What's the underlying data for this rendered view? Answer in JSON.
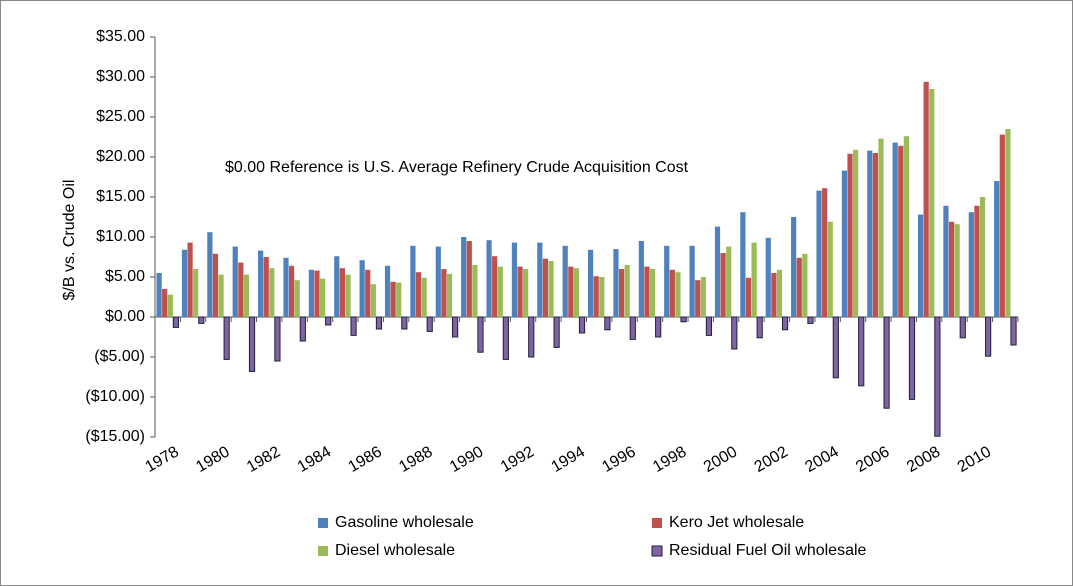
{
  "chart_data": {
    "type": "bar",
    "y_axis_label": "$/B vs. Crude Oil",
    "annotation": "$0.00 Reference is U.S. Average Refinery Crude Acquisition Cost",
    "categories": [
      "1978",
      null,
      "1980",
      null,
      "1982",
      null,
      "1984",
      null,
      "1986",
      null,
      "1988",
      null,
      "1990",
      null,
      "1992",
      null,
      "1994",
      null,
      "1996",
      null,
      "1998",
      null,
      "2000",
      null,
      "2002",
      null,
      "2004",
      null,
      "2006",
      null,
      "2008",
      null,
      "2010",
      null
    ],
    "series": [
      {
        "name": "Gasoline wholesale",
        "color": "#4f81bd",
        "values": [
          5.5,
          8.4,
          10.6,
          8.8,
          8.3,
          7.4,
          5.9,
          7.6,
          7.1,
          6.4,
          8.9,
          8.8,
          10.0,
          9.6,
          9.3,
          9.3,
          8.9,
          8.4,
          8.5,
          9.5,
          8.9,
          8.9,
          11.3,
          13.1,
          9.9,
          12.5,
          15.8,
          18.3,
          20.8,
          21.8,
          12.8,
          13.9,
          13.1,
          17.0
        ]
      },
      {
        "name": "Kero Jet wholesale",
        "color": "#c0504d",
        "values": [
          3.5,
          9.3,
          7.9,
          6.8,
          7.5,
          6.4,
          5.8,
          6.1,
          5.9,
          4.4,
          5.6,
          6.0,
          9.5,
          7.6,
          6.3,
          7.3,
          6.3,
          5.1,
          6.0,
          6.3,
          5.9,
          4.6,
          8.0,
          4.9,
          5.5,
          7.4,
          16.1,
          20.4,
          20.5,
          21.4,
          29.4,
          11.9,
          13.9,
          22.8
        ]
      },
      {
        "name": "Diesel wholesale",
        "color": "#9bbb59",
        "values": [
          2.8,
          6.0,
          5.3,
          5.3,
          6.1,
          4.6,
          4.8,
          5.3,
          4.1,
          4.3,
          4.9,
          5.4,
          6.5,
          6.3,
          6.0,
          7.0,
          6.1,
          5.0,
          6.5,
          6.0,
          5.6,
          5.0,
          8.8,
          9.3,
          5.9,
          7.9,
          11.9,
          20.9,
          22.3,
          22.6,
          28.5,
          11.6,
          15.0,
          23.5
        ]
      },
      {
        "name": "Residual Fuel Oil wholesale",
        "color": "#8064a2",
        "values": [
          -1.3,
          -0.8,
          -5.3,
          -6.8,
          -5.5,
          -3.0,
          -1.0,
          -2.3,
          -1.5,
          -1.5,
          -1.8,
          -2.5,
          -4.4,
          -5.3,
          -5.0,
          -3.8,
          -2.0,
          -1.6,
          -2.8,
          -2.5,
          -0.6,
          -2.3,
          -4.0,
          -2.6,
          -1.6,
          -0.8,
          -7.6,
          -8.6,
          -11.4,
          -10.3,
          -14.9,
          -2.6,
          -4.9,
          -3.5
        ]
      }
    ],
    "ylim": [
      -15,
      35
    ],
    "yticks": [
      {
        "value": -15,
        "label": "($15.00)"
      },
      {
        "value": -10,
        "label": "($10.00)"
      },
      {
        "value": -5,
        "label": "($5.00)"
      },
      {
        "value": 0,
        "label": "$0.00"
      },
      {
        "value": 5,
        "label": "$5.00"
      },
      {
        "value": 10,
        "label": "$10.00"
      },
      {
        "value": 15,
        "label": "$15.00"
      },
      {
        "value": 20,
        "label": "$20.00"
      },
      {
        "value": 25,
        "label": "$25.00"
      },
      {
        "value": 30,
        "label": "$30.00"
      },
      {
        "value": 35,
        "label": "$35.00"
      }
    ]
  }
}
